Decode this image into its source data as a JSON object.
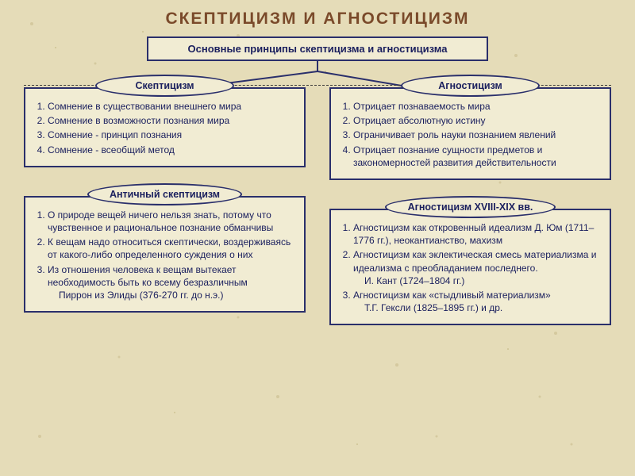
{
  "title": "СКЕПТИЦИЗМ  И  АГНОСТИЦИЗМ",
  "top_box": "Основные принципы скептицизма и агностицизма",
  "left": {
    "oval1": "Скептицизм",
    "box1_items": [
      "Сомнение в существовании внешнего мира",
      "Сомнение в возможности познания мира",
      "Сомнение - принцип познания",
      "Сомнение - всеобщий метод"
    ],
    "oval2": "Античный скептицизм",
    "box2_items": [
      "О природе вещей ничего нельзя знать, потому что чувственное и рациональное познание обманчивы",
      "К вещам надо относиться скептически, воздерживаясь от какого-либо определенного суждения о них",
      "Из отношения человека к вещам вытекает необходимость быть ко всему безразличным\nПиррон из Элиды (376-270 гг. до н.э.)"
    ]
  },
  "right": {
    "oval1": "Агностицизм",
    "box1_items": [
      "Отрицает познаваемость мира",
      "Отрицает абсолютную истину",
      "Ограничивает роль науки познанием явлений",
      "Отрицает познание сущности предметов и закономерностей развития действительности"
    ],
    "oval2": "Агностицизм XVIII-XIX вв.",
    "box2_items": [
      "Агностицизм как откровенный идеализм Д. Юм (1711–1776 гг.), неокантианство, махизм",
      "Агностицизм как эклектическая смесь материализма и идеализма с преобладанием последнего.\nИ. Кант (1724–1804 гг.)",
      "Агностицизм как «стыдливый материализм»\nТ.Г. Гексли (1825–1895 гг.) и др."
    ]
  },
  "colors": {
    "bg_base": "#e5dcb8",
    "speckle1": "#c9bd8e",
    "speckle2": "#b7a96f",
    "title_color": "#7a4a2a",
    "box_fill": "#f1ecd3",
    "box_border": "#2a2f6b",
    "text_color": "#1a1f5e",
    "oval_border": "#2a2f6b",
    "line_color": "#2a2f6b"
  }
}
